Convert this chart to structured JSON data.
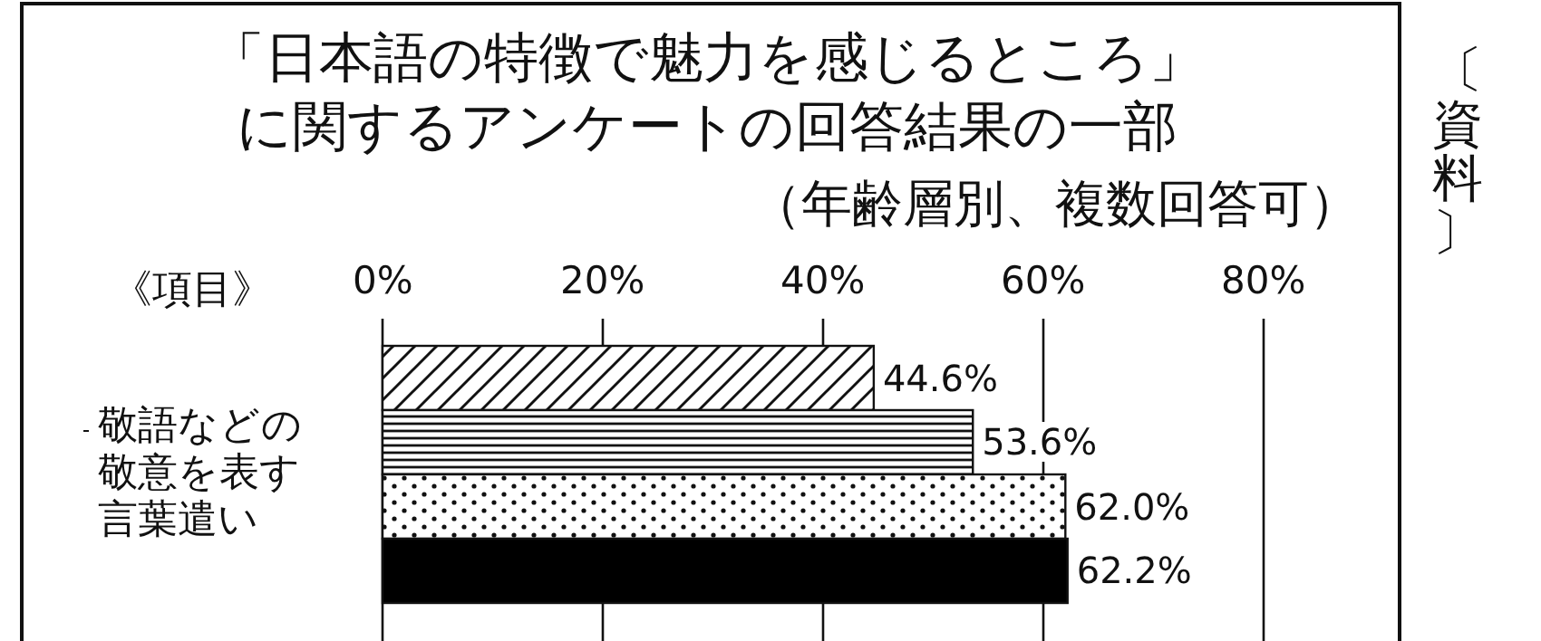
{
  "chart_data": {
    "type": "bar",
    "orientation": "horizontal",
    "title": "「日本語の特徴で魅力を感じるところ」に関するアンケートの回答結果の一部",
    "subtitle": "（年齢層別、複数回答可）",
    "ylabel": "《項目》",
    "annotations": [
      "〔資料〕"
    ],
    "categories": [
      "敬語などの敬意を表す言葉遣い"
    ],
    "series": [
      {
        "color": "#ffffff",
        "values": [
          44.6
        ],
        "value_labels": [
          "44.6%"
        ]
      },
      {
        "color": "#ffffff",
        "values": [
          53.6
        ],
        "value_labels": [
          "53.6%"
        ]
      },
      {
        "color": "#ffffff",
        "values": [
          62.0
        ],
        "value_labels": [
          "62.0%"
        ]
      },
      {
        "color": "#000000",
        "values": [
          62.2
        ],
        "value_labels": [
          "62.2%"
        ]
      }
    ],
    "xlim": [
      0,
      80
    ],
    "xticks": [
      {
        "value": 0,
        "label": "0%"
      },
      {
        "value": 20,
        "label": "20%"
      },
      {
        "value": 40,
        "label": "40%"
      },
      {
        "value": 60,
        "label": "60%"
      },
      {
        "value": 80,
        "label": "80%"
      }
    ],
    "grid": "x"
  }
}
